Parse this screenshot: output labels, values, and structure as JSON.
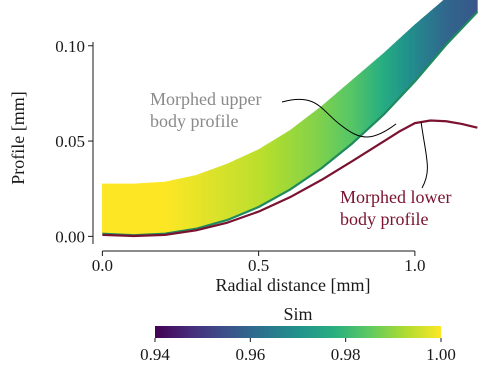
{
  "chart_data": {
    "type": "area",
    "title": "",
    "xlabel": "Radial distance [mm]",
    "ylabel": "Profile [mm]",
    "xlim": [
      -0.03,
      1.25
    ],
    "ylim": [
      -0.004,
      0.124
    ],
    "x_ticks": [
      {
        "value": 0.0,
        "label": "0.0"
      },
      {
        "value": 0.5,
        "label": "0.5"
      },
      {
        "value": 1.0,
        "label": "1.0"
      }
    ],
    "y_ticks": [
      {
        "value": 0.0,
        "label": "0.00"
      },
      {
        "value": 0.05,
        "label": "0.05"
      },
      {
        "value": 0.1,
        "label": "0.10"
      }
    ],
    "series": [
      {
        "name": "Morphed upper body profile",
        "color": "#1e8a5e",
        "x": [
          0.0,
          0.1,
          0.2,
          0.3,
          0.4,
          0.5,
          0.6,
          0.7,
          0.8,
          0.9,
          1.0,
          1.1,
          1.2
        ],
        "y": [
          0.0014,
          0.0006,
          0.0014,
          0.004,
          0.0086,
          0.0154,
          0.0245,
          0.0356,
          0.0488,
          0.0639,
          0.0813,
          0.1005,
          0.1178
        ]
      },
      {
        "name": "Morphed lower body profile",
        "color": "#7a1230",
        "x": [
          0.0,
          0.1,
          0.2,
          0.3,
          0.4,
          0.5,
          0.6,
          0.7,
          0.8,
          0.9,
          0.95,
          1.0,
          1.05,
          1.1,
          1.15,
          1.2
        ],
        "y": [
          0.0008,
          0.0002,
          0.0008,
          0.0032,
          0.0072,
          0.013,
          0.0205,
          0.0295,
          0.0395,
          0.0498,
          0.055,
          0.0594,
          0.0608,
          0.0604,
          0.059,
          0.057
        ]
      }
    ],
    "band": {
      "description_of_values": "Sim",
      "upper_y": [
        0.0275,
        0.0275,
        0.0285,
        0.032,
        0.038,
        0.0455,
        0.0555,
        0.068,
        0.082,
        0.096,
        0.111,
        0.125,
        0.135
      ],
      "lower_y": [
        0.0014,
        0.0006,
        0.0014,
        0.004,
        0.0086,
        0.0154,
        0.0245,
        0.0356,
        0.0488,
        0.0639,
        0.0813,
        0.1005,
        0.1178
      ],
      "sim": [
        1.0,
        1.0,
        1.0,
        0.998,
        0.996,
        0.994,
        0.991,
        0.988,
        0.984,
        0.977,
        0.968,
        0.96,
        0.956
      ]
    },
    "annotations": [
      {
        "lines": [
          "Morphed upper",
          "body profile"
        ],
        "color": "#8a8a8a",
        "points_to": "Morphed upper body profile"
      },
      {
        "lines": [
          "Morphed lower",
          "body profile"
        ],
        "color": "#7a1230",
        "points_to": "Morphed lower body profile"
      }
    ],
    "colorbar": {
      "label": "Sim",
      "colormap": "viridis",
      "range": [
        0.94,
        1.0
      ],
      "ticks": [
        {
          "value": 0.94,
          "label": "0.94"
        },
        {
          "value": 0.96,
          "label": "0.96"
        },
        {
          "value": 0.98,
          "label": "0.98"
        },
        {
          "value": 1.0,
          "label": "1.00"
        }
      ]
    },
    "grid": false,
    "legend": "none"
  }
}
